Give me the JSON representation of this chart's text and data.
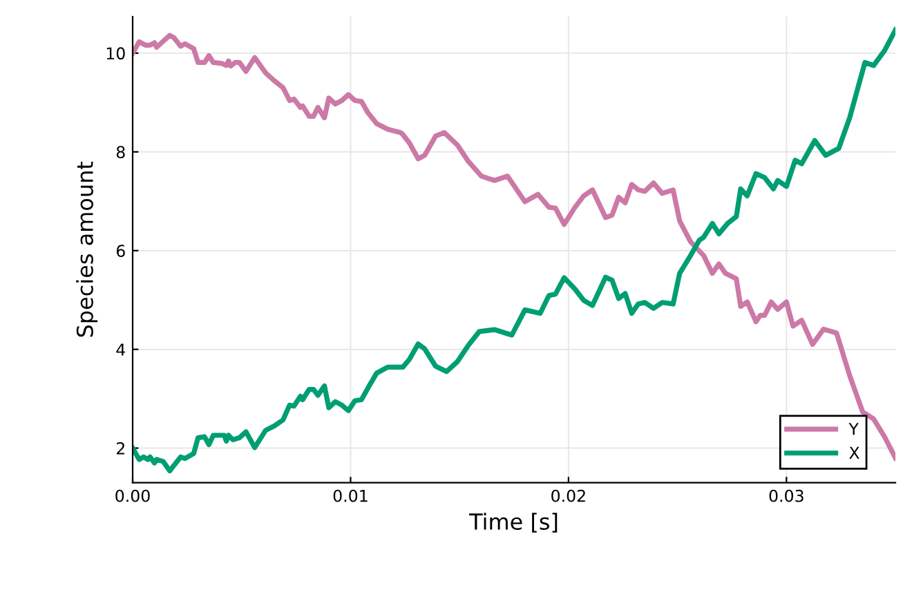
{
  "chart_data": {
    "type": "line",
    "xlabel": "Time [s]",
    "ylabel": "Species amount",
    "xlim": [
      0,
      0.035
    ],
    "ylim": [
      1.3,
      10.74
    ],
    "xticks": [
      {
        "value": 0,
        "label": "0.00"
      },
      {
        "value": 0.01,
        "label": "0.01"
      },
      {
        "value": 0.02,
        "label": "0.02"
      },
      {
        "value": 0.03,
        "label": "0.03"
      }
    ],
    "yticks": [
      2,
      4,
      6,
      8,
      10
    ],
    "grid": true,
    "legend": "bottom right",
    "marker": "none",
    "line_style": "solid",
    "series": [
      {
        "name": "Y",
        "color": "#cc79a7",
        "x": [
          0,
          0.0003,
          0.0006,
          0.0008,
          0.001,
          0.0011,
          0.0017,
          0.0019,
          0.0022,
          0.0024,
          0.0028,
          0.003,
          0.0033,
          0.0035,
          0.0037,
          0.0041,
          0.0043,
          0.0044,
          0.0045,
          0.0047,
          0.0049,
          0.0052,
          0.0056,
          0.0061,
          0.0065,
          0.0069,
          0.0072,
          0.0074,
          0.0077,
          0.0078,
          0.0081,
          0.0083,
          0.0085,
          0.0088,
          0.009,
          0.0093,
          0.0096,
          0.0099,
          0.0102,
          0.0105,
          0.0108,
          0.0112,
          0.0117,
          0.0123,
          0.0124,
          0.0127,
          0.0131,
          0.0134,
          0.0139,
          0.0143,
          0.0149,
          0.0154,
          0.016,
          0.0166,
          0.0172,
          0.018,
          0.0186,
          0.0191,
          0.0194,
          0.0198,
          0.0203,
          0.0207,
          0.0211,
          0.0217,
          0.022,
          0.0223,
          0.0226,
          0.0229,
          0.0232,
          0.0235,
          0.0239,
          0.0243,
          0.0248,
          0.0251,
          0.0256,
          0.0262,
          0.0266,
          0.0269,
          0.0272,
          0.0277,
          0.0279,
          0.0282,
          0.0286,
          0.0288,
          0.029,
          0.0293,
          0.0296,
          0.03,
          0.0303,
          0.0307,
          0.0312,
          0.0317,
          0.0323,
          0.0329,
          0.0335,
          0.034,
          0.0345,
          0.035
        ],
        "values": [
          10.0,
          10.23,
          10.16,
          10.16,
          10.21,
          10.12,
          10.36,
          10.31,
          10.14,
          10.19,
          10.09,
          9.81,
          9.81,
          9.95,
          9.81,
          9.79,
          9.75,
          9.84,
          9.74,
          9.81,
          9.81,
          9.63,
          9.91,
          9.6,
          9.44,
          9.3,
          9.04,
          9.07,
          8.9,
          8.93,
          8.72,
          8.72,
          8.9,
          8.69,
          9.09,
          8.97,
          9.04,
          9.16,
          9.04,
          9.02,
          8.79,
          8.57,
          8.46,
          8.39,
          8.35,
          8.18,
          7.86,
          7.93,
          8.32,
          8.39,
          8.14,
          7.81,
          7.51,
          7.42,
          7.51,
          6.99,
          7.14,
          6.88,
          6.86,
          6.53,
          6.88,
          7.11,
          7.23,
          6.67,
          6.72,
          7.08,
          6.97,
          7.34,
          7.23,
          7.2,
          7.37,
          7.16,
          7.23,
          6.6,
          6.18,
          5.9,
          5.54,
          5.73,
          5.54,
          5.43,
          4.87,
          4.96,
          4.56,
          4.69,
          4.69,
          4.96,
          4.81,
          4.96,
          4.47,
          4.59,
          4.1,
          4.41,
          4.33,
          3.47,
          2.73,
          2.59,
          2.23,
          1.8
        ]
      },
      {
        "name": "X",
        "color": "#009e73",
        "x": [
          0,
          0.0003,
          0.0005,
          0.0007,
          0.0008,
          0.001,
          0.0011,
          0.0014,
          0.0017,
          0.0022,
          0.0024,
          0.0028,
          0.003,
          0.0033,
          0.0035,
          0.0037,
          0.0042,
          0.0043,
          0.0044,
          0.0046,
          0.0049,
          0.0052,
          0.0056,
          0.0061,
          0.0065,
          0.0069,
          0.0072,
          0.0074,
          0.0077,
          0.0078,
          0.0081,
          0.0083,
          0.0085,
          0.0088,
          0.009,
          0.0093,
          0.0096,
          0.0099,
          0.0102,
          0.0105,
          0.0108,
          0.0112,
          0.0117,
          0.0124,
          0.0127,
          0.0131,
          0.0134,
          0.0139,
          0.0144,
          0.0149,
          0.0154,
          0.0159,
          0.0166,
          0.0174,
          0.018,
          0.0187,
          0.0191,
          0.0194,
          0.0198,
          0.0203,
          0.0207,
          0.0211,
          0.0217,
          0.022,
          0.0223,
          0.0226,
          0.0229,
          0.0232,
          0.0235,
          0.0239,
          0.0243,
          0.0248,
          0.0251,
          0.0256,
          0.026,
          0.0262,
          0.0266,
          0.0269,
          0.0273,
          0.0277,
          0.0279,
          0.0282,
          0.0286,
          0.029,
          0.0294,
          0.0296,
          0.03,
          0.0304,
          0.0307,
          0.0313,
          0.0318,
          0.0324,
          0.0329,
          0.0336,
          0.034,
          0.0345,
          0.035
        ],
        "values": [
          2.0,
          1.77,
          1.82,
          1.77,
          1.82,
          1.7,
          1.77,
          1.73,
          1.54,
          1.82,
          1.79,
          1.89,
          2.21,
          2.23,
          2.07,
          2.26,
          2.26,
          2.14,
          2.26,
          2.17,
          2.21,
          2.33,
          2.01,
          2.36,
          2.45,
          2.57,
          2.87,
          2.85,
          3.05,
          2.98,
          3.19,
          3.19,
          3.07,
          3.26,
          2.82,
          2.94,
          2.87,
          2.76,
          2.96,
          2.98,
          3.22,
          3.52,
          3.64,
          3.64,
          3.8,
          4.11,
          4.01,
          3.66,
          3.55,
          3.75,
          4.08,
          4.36,
          4.4,
          4.29,
          4.8,
          4.73,
          5.09,
          5.12,
          5.45,
          5.22,
          4.99,
          4.89,
          5.46,
          5.4,
          5.03,
          5.13,
          4.73,
          4.92,
          4.95,
          4.83,
          4.95,
          4.92,
          5.54,
          5.9,
          6.21,
          6.27,
          6.55,
          6.34,
          6.55,
          6.69,
          7.25,
          7.11,
          7.56,
          7.48,
          7.25,
          7.42,
          7.3,
          7.83,
          7.76,
          8.23,
          7.93,
          8.07,
          8.69,
          9.81,
          9.75,
          10.05,
          10.47
        ]
      }
    ]
  }
}
